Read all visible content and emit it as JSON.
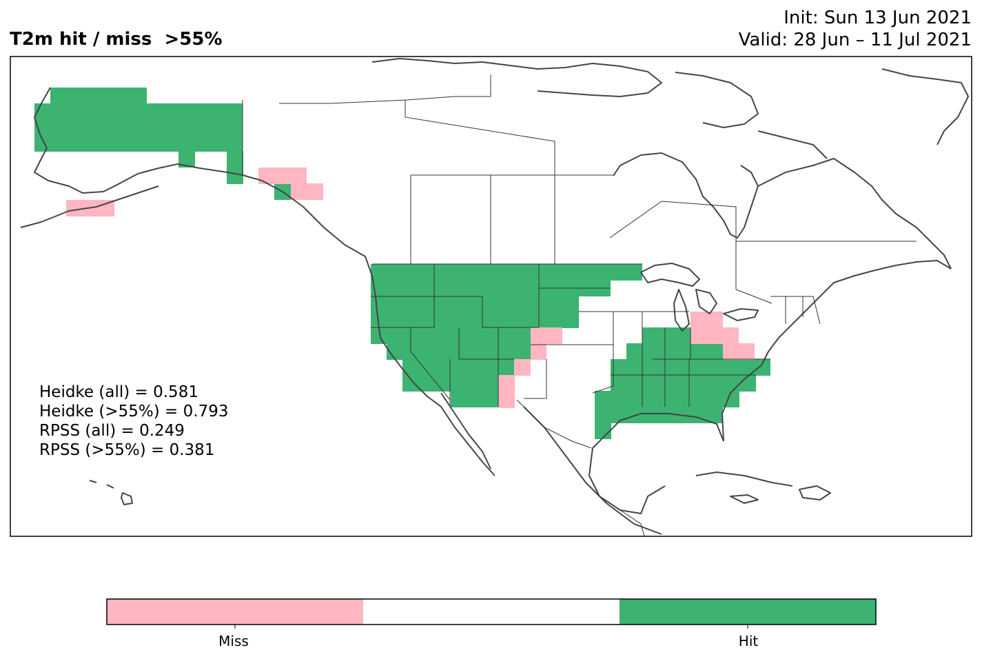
{
  "title": "T2m hit / miss  >55%",
  "init": "Init: Sun 13 Jun 2021",
  "valid": "Valid: 28 Jun – 11 Jul 2021",
  "stats": {
    "heidke_all": "Heidke (all) = 0.581",
    "heidke_55": "Heidke (>55%) = 0.793",
    "rpss_all": "RPSS (all) = 0.249",
    "rpss_55": "RPSS (>55%) = 0.381"
  },
  "legend": {
    "categories": [
      "Miss",
      "",
      "Hit"
    ],
    "colors": [
      "#ffb6c1",
      "#ffffff",
      "#3cb371"
    ]
  },
  "colors": {
    "hit": "#3cb371",
    "miss": "#ffb6c1",
    "coast": "#444444",
    "border": "#333333"
  }
}
